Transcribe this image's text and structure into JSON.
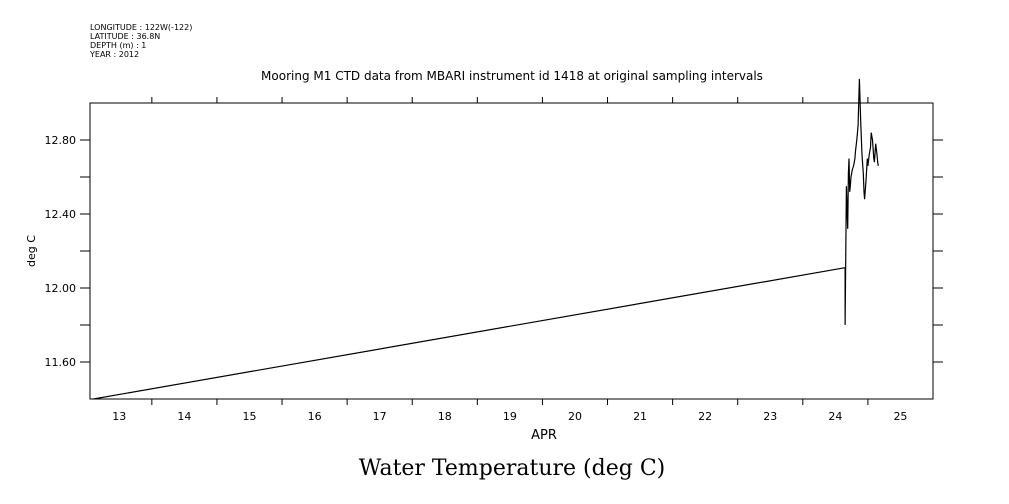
{
  "metadata": {
    "lines": [
      "LONGITUDE : 122W(-122)",
      "LATITUDE : 36.8N",
      "DEPTH (m) : 1",
      "YEAR : 2012"
    ]
  },
  "chart_data": {
    "type": "line",
    "title": "Mooring M1 CTD data from MBARI instrument id 1418 at original sampling intervals",
    "xlabel": "APR",
    "ylabel": "deg C",
    "caption": "Water Temperature (deg C)",
    "xlim": [
      12.55,
      25.5
    ],
    "ylim": [
      11.4,
      13.0
    ],
    "xticks": [
      13,
      14,
      15,
      16,
      17,
      18,
      19,
      20,
      21,
      22,
      23,
      24,
      25
    ],
    "xtick_labels": [
      "13",
      "14",
      "15",
      "16",
      "17",
      "18",
      "19",
      "20",
      "21",
      "22",
      "23",
      "24",
      "25"
    ],
    "yticks": [
      11.6,
      12.0,
      12.4,
      12.8
    ],
    "ytick_labels": [
      "11.60",
      "12.00",
      "12.40",
      "12.80"
    ],
    "series": [
      {
        "x": [
          12.6,
          24.15,
          24.15,
          24.17,
          24.19,
          24.2,
          24.21,
          24.22,
          24.23,
          24.24,
          24.26,
          24.28,
          24.3,
          24.31,
          24.33,
          24.35,
          24.37,
          24.39,
          24.41,
          24.43,
          24.44,
          24.45,
          24.47,
          24.49,
          24.5,
          24.52,
          24.54,
          24.55,
          24.57,
          24.59,
          24.6,
          24.62,
          24.64,
          24.65,
          24.66
        ],
        "y": [
          11.4,
          12.11,
          11.8,
          12.55,
          12.32,
          12.62,
          12.7,
          12.52,
          12.55,
          12.6,
          12.64,
          12.66,
          12.7,
          12.74,
          12.8,
          12.88,
          13.13,
          12.9,
          12.72,
          12.62,
          12.52,
          12.48,
          12.58,
          12.7,
          12.66,
          12.72,
          12.76,
          12.84,
          12.8,
          12.7,
          12.68,
          12.78,
          12.72,
          12.68,
          12.66
        ]
      }
    ],
    "line_color": "#000000",
    "grid": false
  }
}
